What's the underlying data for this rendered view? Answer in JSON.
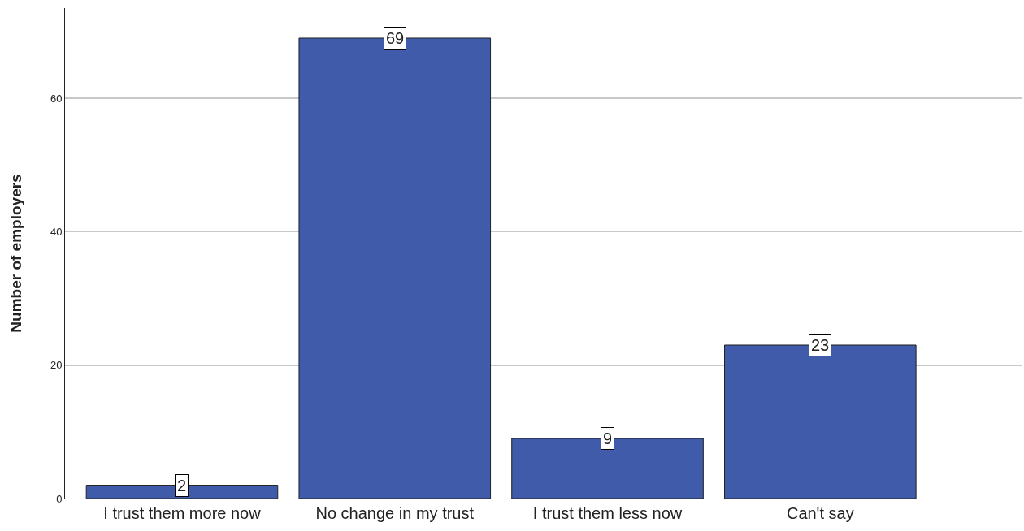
{
  "chart_data": {
    "type": "bar",
    "ylabel": "Number of employers",
    "categories": [
      "I trust them more now",
      "No change in my trust",
      "I trust them less now",
      "Can't say"
    ],
    "values": [
      2,
      69,
      9,
      23
    ],
    "color": "#3f5ba9",
    "ylim": [
      0,
      73.5
    ],
    "yticks": [
      0,
      20,
      40,
      60
    ],
    "grid": "y",
    "data_labels": true
  }
}
